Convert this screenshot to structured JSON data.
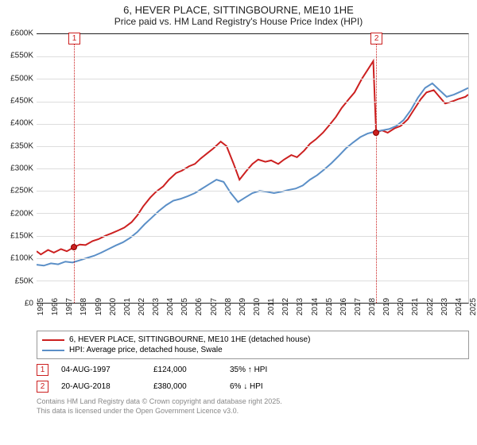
{
  "title": "6, HEVER PLACE, SITTINGBOURNE, ME10 1HE",
  "subtitle": "Price paid vs. HM Land Registry's House Price Index (HPI)",
  "chart": {
    "type": "line",
    "ylim": [
      0,
      600000
    ],
    "ytick_step": 50000,
    "y_ticks": [
      "£0",
      "£50K",
      "£100K",
      "£150K",
      "£200K",
      "£250K",
      "£300K",
      "£350K",
      "£400K",
      "£450K",
      "£500K",
      "£550K",
      "£600K"
    ],
    "x_years": [
      1995,
      1996,
      1997,
      1998,
      1999,
      2000,
      2001,
      2002,
      2003,
      2004,
      2005,
      2006,
      2007,
      2008,
      2009,
      2010,
      2011,
      2012,
      2013,
      2014,
      2015,
      2016,
      2017,
      2018,
      2019,
      2020,
      2021,
      2022,
      2023,
      2024,
      2025
    ],
    "background_color": "#ffffff",
    "grid_color": "#dddddd",
    "axis_color": "#222222",
    "label_fontsize": 10,
    "title_fontsize": 13,
    "series": [
      {
        "name": "6, HEVER PLACE, SITTINGBOURNE, ME10 1HE (detached house)",
        "color": "#cc2020",
        "width": 2,
        "data": [
          [
            1995,
            115000
          ],
          [
            1995.3,
            108000
          ],
          [
            1995.8,
            118000
          ],
          [
            1996.2,
            112000
          ],
          [
            1996.7,
            120000
          ],
          [
            1997.1,
            115000
          ],
          [
            1997.6,
            124000
          ],
          [
            1998,
            130000
          ],
          [
            1998.4,
            129000
          ],
          [
            1998.9,
            138000
          ],
          [
            1999.3,
            142000
          ],
          [
            1999.8,
            150000
          ],
          [
            2000.2,
            155000
          ],
          [
            2000.7,
            162000
          ],
          [
            2001.1,
            168000
          ],
          [
            2001.6,
            180000
          ],
          [
            2002,
            195000
          ],
          [
            2002.4,
            215000
          ],
          [
            2002.9,
            235000
          ],
          [
            2003.3,
            248000
          ],
          [
            2003.8,
            260000
          ],
          [
            2004.2,
            275000
          ],
          [
            2004.7,
            290000
          ],
          [
            2005.1,
            295000
          ],
          [
            2005.6,
            305000
          ],
          [
            2006,
            310000
          ],
          [
            2006.4,
            322000
          ],
          [
            2006.9,
            335000
          ],
          [
            2007.3,
            345000
          ],
          [
            2007.8,
            360000
          ],
          [
            2008.2,
            350000
          ],
          [
            2008.7,
            310000
          ],
          [
            2009.1,
            275000
          ],
          [
            2009.6,
            295000
          ],
          [
            2010,
            310000
          ],
          [
            2010.4,
            320000
          ],
          [
            2010.9,
            315000
          ],
          [
            2011.3,
            318000
          ],
          [
            2011.8,
            310000
          ],
          [
            2012.2,
            320000
          ],
          [
            2012.7,
            330000
          ],
          [
            2013.1,
            325000
          ],
          [
            2013.6,
            340000
          ],
          [
            2014,
            355000
          ],
          [
            2014.4,
            365000
          ],
          [
            2014.9,
            380000
          ],
          [
            2015.3,
            395000
          ],
          [
            2015.8,
            415000
          ],
          [
            2016.2,
            435000
          ],
          [
            2016.7,
            455000
          ],
          [
            2017.1,
            470000
          ],
          [
            2017.6,
            500000
          ],
          [
            2018,
            520000
          ],
          [
            2018.4,
            540000
          ],
          [
            2018.6,
            380000
          ],
          [
            2019,
            385000
          ],
          [
            2019.4,
            380000
          ],
          [
            2019.9,
            390000
          ],
          [
            2020.3,
            395000
          ],
          [
            2020.8,
            410000
          ],
          [
            2021.2,
            430000
          ],
          [
            2021.7,
            455000
          ],
          [
            2022.1,
            470000
          ],
          [
            2022.6,
            475000
          ],
          [
            2023,
            460000
          ],
          [
            2023.4,
            445000
          ],
          [
            2023.9,
            450000
          ],
          [
            2024.3,
            455000
          ],
          [
            2024.8,
            460000
          ],
          [
            2025,
            465000
          ]
        ]
      },
      {
        "name": "HPI: Average price, detached house, Swale",
        "color": "#5b8fc7",
        "width": 2,
        "data": [
          [
            1995,
            85000
          ],
          [
            1995.5,
            83000
          ],
          [
            1996,
            88000
          ],
          [
            1996.5,
            86000
          ],
          [
            1997,
            92000
          ],
          [
            1997.5,
            90000
          ],
          [
            1998,
            95000
          ],
          [
            1998.5,
            100000
          ],
          [
            1999,
            105000
          ],
          [
            1999.5,
            112000
          ],
          [
            2000,
            120000
          ],
          [
            2000.5,
            128000
          ],
          [
            2001,
            135000
          ],
          [
            2001.5,
            145000
          ],
          [
            2002,
            158000
          ],
          [
            2002.5,
            175000
          ],
          [
            2003,
            190000
          ],
          [
            2003.5,
            205000
          ],
          [
            2004,
            218000
          ],
          [
            2004.5,
            228000
          ],
          [
            2005,
            232000
          ],
          [
            2005.5,
            238000
          ],
          [
            2006,
            245000
          ],
          [
            2006.5,
            255000
          ],
          [
            2007,
            265000
          ],
          [
            2007.5,
            275000
          ],
          [
            2008,
            270000
          ],
          [
            2008.5,
            245000
          ],
          [
            2009,
            225000
          ],
          [
            2009.5,
            235000
          ],
          [
            2010,
            245000
          ],
          [
            2010.5,
            250000
          ],
          [
            2011,
            248000
          ],
          [
            2011.5,
            245000
          ],
          [
            2012,
            248000
          ],
          [
            2012.5,
            252000
          ],
          [
            2013,
            255000
          ],
          [
            2013.5,
            262000
          ],
          [
            2014,
            275000
          ],
          [
            2014.5,
            285000
          ],
          [
            2015,
            298000
          ],
          [
            2015.5,
            312000
          ],
          [
            2016,
            328000
          ],
          [
            2016.5,
            345000
          ],
          [
            2017,
            358000
          ],
          [
            2017.5,
            370000
          ],
          [
            2018,
            378000
          ],
          [
            2018.5,
            382000
          ],
          [
            2019,
            385000
          ],
          [
            2019.5,
            388000
          ],
          [
            2020,
            395000
          ],
          [
            2020.5,
            408000
          ],
          [
            2021,
            430000
          ],
          [
            2021.5,
            458000
          ],
          [
            2022,
            480000
          ],
          [
            2022.5,
            490000
          ],
          [
            2023,
            475000
          ],
          [
            2023.5,
            460000
          ],
          [
            2024,
            465000
          ],
          [
            2024.5,
            472000
          ],
          [
            2025,
            480000
          ]
        ]
      }
    ],
    "markers": [
      {
        "n": "1",
        "year": 1997.6,
        "value": 124000,
        "line_color": "#cc2020"
      },
      {
        "n": "2",
        "year": 2018.6,
        "value": 380000,
        "line_color": "#cc2020"
      }
    ]
  },
  "legend": {
    "row1": "6, HEVER PLACE, SITTINGBOURNE, ME10 1HE (detached house)",
    "row2": "HPI: Average price, detached house, Swale"
  },
  "data_rows": [
    {
      "n": "1",
      "date": "04-AUG-1997",
      "price": "£124,000",
      "hpi": "35% ↑ HPI"
    },
    {
      "n": "2",
      "date": "20-AUG-2018",
      "price": "£380,000",
      "hpi": "6% ↓ HPI"
    }
  ],
  "footnote": {
    "line1": "Contains HM Land Registry data © Crown copyright and database right 2025.",
    "line2": "This data is licensed under the Open Government Licence v3.0."
  }
}
